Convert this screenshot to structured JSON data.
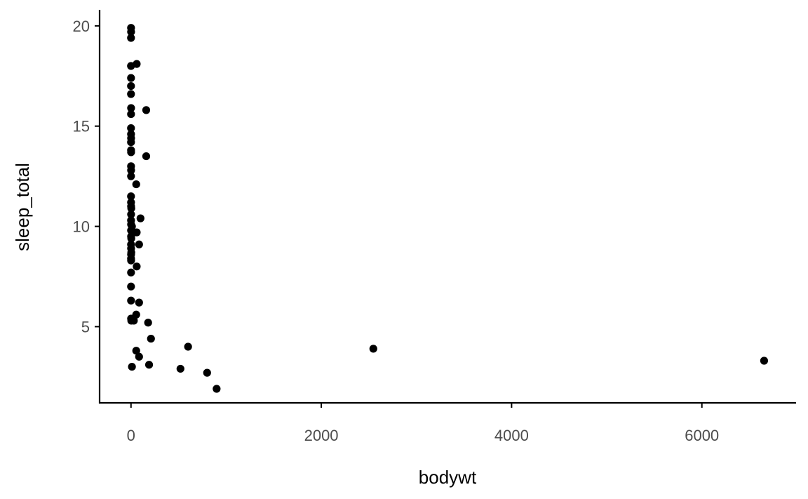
{
  "chart_data": {
    "type": "scatter",
    "title": "",
    "xlabel": "bodywt",
    "ylabel": "sleep_total",
    "xlim": [
      -330,
      6990
    ],
    "ylim": [
      1.2,
      20.8
    ],
    "x_ticks": [
      0,
      2000,
      4000,
      6000
    ],
    "y_ticks": [
      5,
      10,
      15,
      20
    ],
    "grid": false,
    "legend": "none",
    "point_color": "#000000",
    "axis_color": "#000000",
    "tick_label_color": "#4d4d4d",
    "points": [
      {
        "x": 0.5,
        "y": 19.9
      },
      {
        "x": 1,
        "y": 19.7
      },
      {
        "x": 0.1,
        "y": 19.4
      },
      {
        "x": 0.02,
        "y": 18.0
      },
      {
        "x": 60,
        "y": 18.1
      },
      {
        "x": 0.3,
        "y": 17.4
      },
      {
        "x": 0.1,
        "y": 17.0
      },
      {
        "x": 0.05,
        "y": 16.6
      },
      {
        "x": 1,
        "y": 15.9
      },
      {
        "x": 0.5,
        "y": 15.6
      },
      {
        "x": 160,
        "y": 15.8
      },
      {
        "x": 0.1,
        "y": 14.9
      },
      {
        "x": 0.5,
        "y": 14.6
      },
      {
        "x": 1,
        "y": 14.4
      },
      {
        "x": 0.2,
        "y": 14.2
      },
      {
        "x": 0.5,
        "y": 13.8
      },
      {
        "x": 1,
        "y": 13.7
      },
      {
        "x": 160,
        "y": 13.5
      },
      {
        "x": 0.5,
        "y": 13.0
      },
      {
        "x": 1,
        "y": 12.8
      },
      {
        "x": 0.3,
        "y": 12.5
      },
      {
        "x": 55,
        "y": 12.1
      },
      {
        "x": 0.2,
        "y": 11.5
      },
      {
        "x": 0.5,
        "y": 11.2
      },
      {
        "x": 1,
        "y": 11.0
      },
      {
        "x": 3,
        "y": 10.9
      },
      {
        "x": 1,
        "y": 10.6
      },
      {
        "x": 100,
        "y": 10.4
      },
      {
        "x": 0.5,
        "y": 10.3
      },
      {
        "x": 1,
        "y": 10.1
      },
      {
        "x": 10,
        "y": 10.0
      },
      {
        "x": 0.5,
        "y": 9.8
      },
      {
        "x": 25,
        "y": 9.7
      },
      {
        "x": 60,
        "y": 9.7
      },
      {
        "x": 1,
        "y": 9.5
      },
      {
        "x": 3,
        "y": 9.4
      },
      {
        "x": 0.5,
        "y": 9.1
      },
      {
        "x": 85,
        "y": 9.1
      },
      {
        "x": 1,
        "y": 8.9
      },
      {
        "x": 3,
        "y": 8.7
      },
      {
        "x": 1,
        "y": 8.6
      },
      {
        "x": 0.5,
        "y": 8.4
      },
      {
        "x": 1,
        "y": 8.3
      },
      {
        "x": 60,
        "y": 8.0
      },
      {
        "x": 0.5,
        "y": 7.7
      },
      {
        "x": 0.3,
        "y": 7.0
      },
      {
        "x": 0.5,
        "y": 6.3
      },
      {
        "x": 85,
        "y": 6.2
      },
      {
        "x": 55,
        "y": 5.6
      },
      {
        "x": 1,
        "y": 5.4
      },
      {
        "x": 25,
        "y": 5.4
      },
      {
        "x": 3,
        "y": 5.3
      },
      {
        "x": 30,
        "y": 5.3
      },
      {
        "x": 180,
        "y": 5.2
      },
      {
        "x": 210,
        "y": 4.4
      },
      {
        "x": 600,
        "y": 4.0
      },
      {
        "x": 55,
        "y": 3.8
      },
      {
        "x": 85,
        "y": 3.5
      },
      {
        "x": 190,
        "y": 3.1
      },
      {
        "x": 10,
        "y": 3.0
      },
      {
        "x": 520,
        "y": 2.9
      },
      {
        "x": 800,
        "y": 2.7
      },
      {
        "x": 900,
        "y": 1.9
      },
      {
        "x": 2547,
        "y": 3.9
      },
      {
        "x": 6654,
        "y": 3.3
      }
    ]
  }
}
